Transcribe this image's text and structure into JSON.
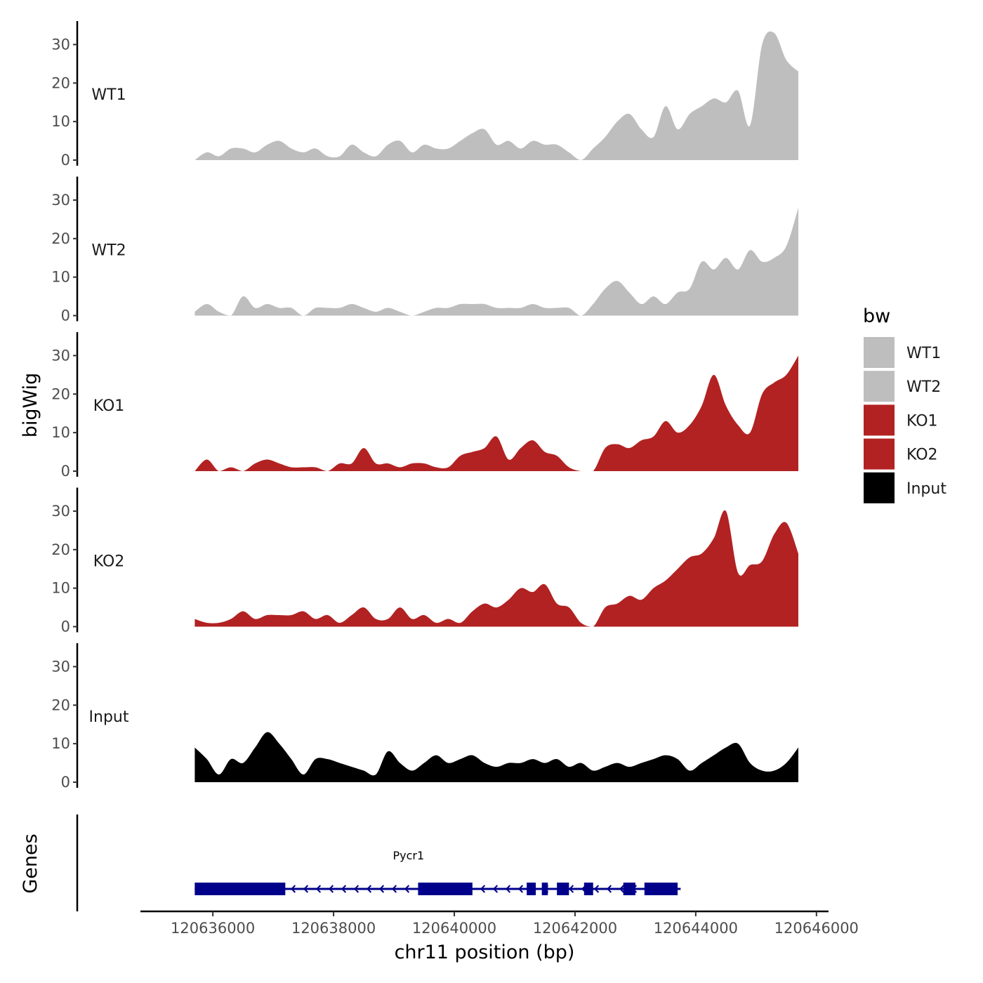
{
  "chart_data": {
    "type": "area",
    "ylabel": "bigWig",
    "xlabel": "chr11 position (bp)",
    "genes_label": "Genes",
    "xlim": [
      120635600,
      120645700
    ],
    "ylim": [
      0,
      35
    ],
    "x_axis_range": [
      120634800,
      120646200
    ],
    "y_ticks": [
      0,
      10,
      20,
      30
    ],
    "y_tick_labels": [
      "0",
      "10",
      "20",
      "30"
    ],
    "x_ticks": [
      120636000,
      120638000,
      120640000,
      120642000,
      120644000,
      120646000
    ],
    "x_tick_labels": [
      "120636000",
      "120638000",
      "120640000",
      "120642000",
      "120644000",
      "120646000"
    ],
    "legend": {
      "title": "bw",
      "position": "right",
      "entries": [
        {
          "label": "WT1",
          "color": "#BEBEBE"
        },
        {
          "label": "WT2",
          "color": "#BEBEBE"
        },
        {
          "label": "KO1",
          "color": "#B22222"
        },
        {
          "label": "KO2",
          "color": "#B22222"
        },
        {
          "label": "Input",
          "color": "#000000"
        }
      ]
    },
    "x": [
      120635700,
      120635900,
      120636100,
      120636300,
      120636500,
      120636700,
      120636900,
      120637100,
      120637300,
      120637500,
      120637700,
      120637900,
      120638100,
      120638300,
      120638500,
      120638700,
      120638900,
      120639100,
      120639300,
      120639500,
      120639700,
      120639900,
      120640100,
      120640300,
      120640500,
      120640700,
      120640900,
      120641100,
      120641300,
      120641500,
      120641700,
      120641900,
      120642100,
      120642300,
      120642500,
      120642700,
      120642900,
      120643100,
      120643300,
      120643500,
      120643700,
      120643900,
      120644100,
      120644300,
      120644500,
      120644700,
      120644900,
      120645100,
      120645300,
      120645500,
      120645700
    ],
    "series": [
      {
        "name": "WT1",
        "color": "#BEBEBE",
        "values": [
          0,
          2,
          1,
          3,
          3,
          2,
          4,
          5,
          3,
          2,
          3,
          1,
          1,
          4,
          2,
          1,
          4,
          5,
          2,
          4,
          3,
          3,
          5,
          7,
          8,
          4,
          5,
          3,
          5,
          4,
          4,
          2,
          0,
          3,
          6,
          10,
          12,
          8,
          6,
          14,
          8,
          12,
          14,
          16,
          15,
          18,
          9,
          30,
          33,
          26,
          23
        ]
      },
      {
        "name": "WT2",
        "color": "#BEBEBE",
        "values": [
          1,
          3,
          1,
          0,
          5,
          2,
          3,
          2,
          2,
          0,
          2,
          2,
          2,
          3,
          2,
          1,
          2,
          1,
          0,
          1,
          2,
          2,
          3,
          3,
          3,
          2,
          2,
          2,
          3,
          2,
          2,
          2,
          0,
          3,
          7,
          9,
          6,
          3,
          5,
          3,
          6,
          7,
          14,
          12,
          15,
          12,
          17,
          14,
          15,
          18,
          28
        ]
      },
      {
        "name": "KO1",
        "color": "#B22222",
        "values": [
          0,
          3,
          0,
          1,
          0,
          2,
          3,
          2,
          1,
          1,
          1,
          0,
          2,
          2,
          6,
          2,
          2,
          1,
          2,
          2,
          1,
          1,
          4,
          5,
          6,
          9,
          3,
          6,
          8,
          5,
          4,
          1,
          0,
          0,
          6,
          7,
          6,
          8,
          9,
          13,
          10,
          12,
          17,
          25,
          17,
          12,
          10,
          20,
          23,
          25,
          30
        ]
      },
      {
        "name": "KO2",
        "color": "#B22222",
        "values": [
          2,
          1,
          1,
          2,
          4,
          2,
          3,
          3,
          3,
          4,
          2,
          3,
          1,
          3,
          5,
          2,
          2,
          5,
          2,
          3,
          1,
          2,
          1,
          4,
          6,
          5,
          7,
          10,
          9,
          11,
          6,
          5,
          1,
          0,
          5,
          6,
          8,
          7,
          10,
          12,
          15,
          18,
          19,
          23,
          30,
          14,
          16,
          17,
          24,
          27,
          19
        ]
      },
      {
        "name": "Input",
        "color": "#000000",
        "values": [
          9,
          6,
          2,
          6,
          5,
          9,
          13,
          10,
          6,
          2,
          6,
          6,
          5,
          4,
          3,
          2,
          8,
          5,
          3,
          5,
          7,
          5,
          6,
          7,
          5,
          4,
          5,
          5,
          6,
          5,
          6,
          4,
          5,
          3,
          4,
          5,
          4,
          5,
          6,
          7,
          6,
          3,
          5,
          7,
          9,
          10,
          5,
          3,
          3,
          5,
          9
        ]
      }
    ],
    "gene": {
      "name": "Pycr1",
      "strand": "-",
      "start": 120635700,
      "end": 120643750,
      "color": "#00008B",
      "exons": [
        [
          120635700,
          120637200
        ],
        [
          120639400,
          120640300
        ],
        [
          120641200,
          120641350
        ],
        [
          120641450,
          120641550
        ],
        [
          120641700,
          120641900
        ],
        [
          120642150,
          120642300
        ],
        [
          120642800,
          120643000
        ],
        [
          120643150,
          120643700
        ]
      ]
    }
  }
}
